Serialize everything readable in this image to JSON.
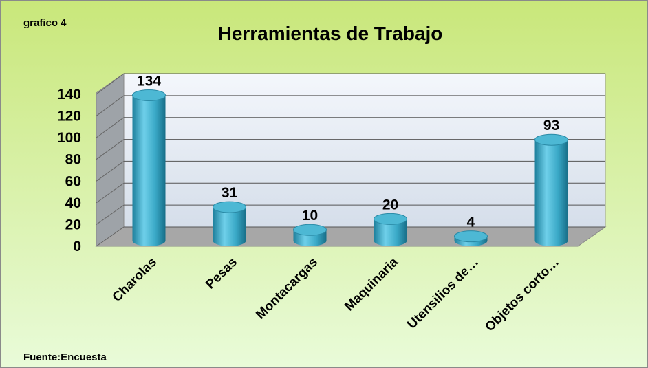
{
  "chart_data": {
    "type": "bar3d",
    "title": "Herramientas de Trabajo",
    "annotations": [
      "grafico 4",
      "Fuente:Encuesta"
    ],
    "categories": [
      "Charolas",
      "Pesas",
      "Montacargas",
      "Maquinaria",
      "Utensilios de…",
      "Objetos corto…"
    ],
    "values": [
      134,
      31,
      10,
      20,
      4,
      93
    ],
    "color": "#3aa6c4",
    "ylim": [
      0,
      140
    ],
    "yticks": [
      0,
      20,
      40,
      60,
      80,
      100,
      120,
      140
    ],
    "grid": true
  }
}
